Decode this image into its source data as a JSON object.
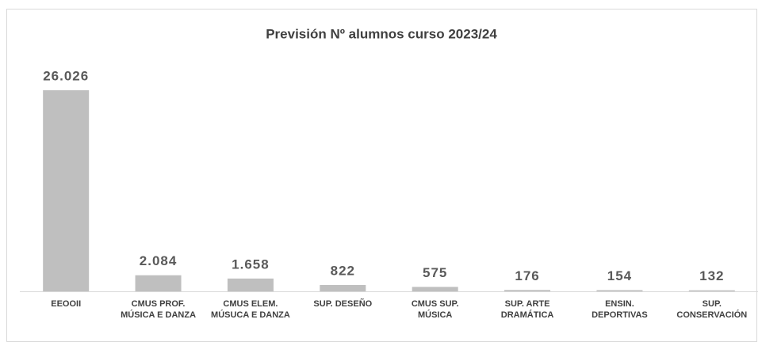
{
  "chart_data": {
    "type": "bar",
    "title": "Previsión Nº alumnos curso 2023/24",
    "categories": [
      "EEOOII",
      "CMUS PROF. MÚSICA E DANZA",
      "CMUS ELEM. MÚSUCA E DANZA",
      "SUP. DESEÑO",
      "CMUS SUP. MÚSICA",
      "SUP. ARTE DRAMÁTICA",
      "ENSIN. DEPORTIVAS",
      "SUP. CONSERVACIÓN"
    ],
    "values": [
      26026,
      2084,
      1658,
      822,
      575,
      176,
      154,
      132
    ],
    "value_labels": [
      "26.026",
      "2.084",
      "1.658",
      "822",
      "575",
      "176",
      "154",
      "132"
    ],
    "color": "#bfbfbf"
  }
}
